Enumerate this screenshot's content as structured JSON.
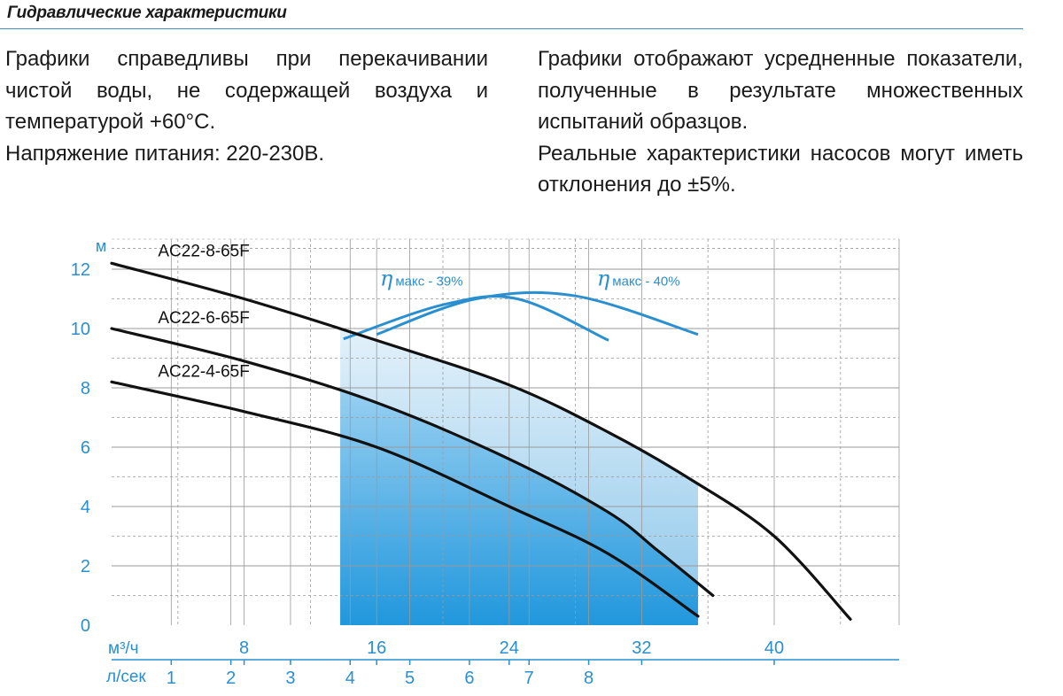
{
  "header": {
    "title": "Гидравлические характеристики"
  },
  "text_left": {
    "p1": "Графики справедливы при перекачивании чистой воды, не содержащей воздуха и температурой +60°С.",
    "p2": "Напряжение питания: 220-230В."
  },
  "text_right": {
    "p1": "Графики отображают усредненные показатели, полученные в результате множественных испытаний образцов.",
    "p2": "Реальные характеристики насосов могут иметь отклонения до ±5%."
  },
  "colors": {
    "accent": "#2a8fd0",
    "curve": "#111111",
    "grid": "#9a9a9a",
    "fill_light": "#cfe6f5",
    "fill_dark": "#1b95dc"
  },
  "chart_data": {
    "type": "line",
    "ylabel": "м",
    "x_primary_label": "м³/ч",
    "x_secondary_label": "л/сек",
    "yticks": [
      0,
      2,
      4,
      6,
      8,
      10,
      12
    ],
    "xticks_primary": [
      8,
      16,
      24,
      32,
      40
    ],
    "xticks_secondary": [
      1,
      2,
      3,
      4,
      5,
      6,
      7,
      8
    ],
    "xlim": [
      0,
      46
    ],
    "ylim": [
      0,
      13
    ],
    "grid": true,
    "operating_range_m3h": [
      13.8,
      35.4
    ],
    "series": [
      {
        "name": "AC22-8-65F",
        "x": [
          0,
          8,
          16,
          24,
          30,
          35,
          40,
          44.6
        ],
        "y": [
          12.2,
          11.0,
          9.6,
          8.1,
          6.5,
          4.9,
          3.0,
          0.2
        ]
      },
      {
        "name": "AC22-6-65F",
        "x": [
          0,
          8,
          16,
          24,
          30,
          33,
          36.3
        ],
        "y": [
          10.0,
          8.9,
          7.5,
          5.6,
          3.8,
          2.5,
          1.0
        ]
      },
      {
        "name": "AC22-4-65F",
        "x": [
          0,
          8,
          16,
          24,
          30,
          35.4
        ],
        "y": [
          8.2,
          7.2,
          6.0,
          4.0,
          2.4,
          0.3
        ]
      }
    ],
    "efficiency_labels": [
      {
        "symbol": "η",
        "text": "макс - 39%",
        "x": 16.2,
        "y": 11.45
      },
      {
        "symbol": "η",
        "text": "макс - 40%",
        "x": 29.3,
        "y": 11.45
      }
    ],
    "efficiency_arcs": [
      {
        "x": [
          14.0,
          20.0,
          24.5,
          30.0
        ],
        "y": [
          9.65,
          10.8,
          11.0,
          9.6
        ]
      },
      {
        "x": [
          16.0,
          22.0,
          28.0,
          35.4
        ],
        "y": [
          9.8,
          11.0,
          11.1,
          9.8
        ]
      }
    ]
  }
}
